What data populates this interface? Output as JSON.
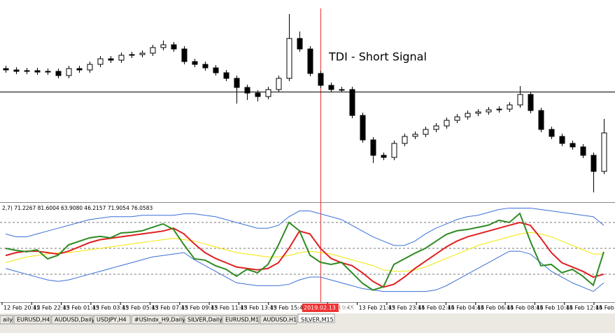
{
  "chart_data": [
    {
      "type": "candlestick",
      "annotation": "TDI - Short Signal",
      "ylim": [
        10,
        290
      ],
      "hline": 164,
      "up_color": "#ffffff",
      "down_color": "#000000",
      "open": [
        197,
        195,
        193,
        194,
        192,
        193,
        187,
        197,
        195,
        203,
        211,
        209,
        216,
        217,
        219,
        227,
        231,
        225,
        207,
        203,
        198,
        191,
        183,
        170,
        162,
        157,
        167,
        183,
        240,
        225,
        190,
        173,
        167,
        167,
        130,
        95,
        73,
        70,
        90,
        100,
        103,
        110,
        115,
        123,
        128,
        133,
        135,
        138,
        139,
        145,
        160,
        137,
        110,
        100,
        90,
        85,
        73,
        50
      ],
      "high": [
        201,
        199,
        198,
        198,
        197,
        197,
        201,
        201,
        207,
        215,
        215,
        220,
        221,
        223,
        231,
        237,
        235,
        229,
        211,
        207,
        202,
        195,
        187,
        174,
        166,
        171,
        187,
        275,
        250,
        229,
        194,
        177,
        171,
        171,
        134,
        99,
        77,
        94,
        104,
        107,
        114,
        119,
        127,
        132,
        137,
        139,
        142,
        143,
        149,
        172,
        164,
        141,
        114,
        104,
        94,
        89,
        77,
        125
      ],
      "low": [
        191,
        189,
        189,
        188,
        188,
        183,
        183,
        191,
        191,
        199,
        205,
        205,
        212,
        213,
        215,
        223,
        221,
        203,
        199,
        194,
        187,
        179,
        147,
        152,
        150,
        153,
        163,
        179,
        221,
        186,
        169,
        163,
        163,
        126,
        91,
        62,
        66,
        66,
        86,
        96,
        99,
        106,
        111,
        119,
        124,
        129,
        131,
        134,
        135,
        141,
        133,
        106,
        96,
        86,
        81,
        69,
        20,
        46
      ],
      "close": [
        195,
        193,
        194,
        192,
        193,
        187,
        197,
        195,
        203,
        211,
        209,
        216,
        217,
        219,
        227,
        231,
        225,
        207,
        203,
        198,
        191,
        183,
        170,
        162,
        157,
        167,
        183,
        240,
        225,
        190,
        173,
        167,
        167,
        130,
        95,
        73,
        70,
        90,
        100,
        103,
        110,
        115,
        123,
        128,
        133,
        135,
        138,
        139,
        145,
        160,
        137,
        110,
        100,
        90,
        85,
        73,
        50,
        105
      ]
    },
    {
      "type": "line",
      "header": "2,7) 71.2267 81.6004 63.9080 46.2157 71.9054 76.0583",
      "ylim": [
        12.5,
        78.7
      ],
      "levels": [
        68,
        50,
        32
      ],
      "series": [
        {
          "color": "#3a6fd8",
          "values": [
            60,
            58,
            58,
            60,
            62,
            64,
            66,
            68,
            70,
            71,
            72,
            72,
            72,
            73,
            73,
            73,
            73,
            74,
            74,
            73,
            72,
            70,
            68,
            66,
            64,
            64,
            66,
            72,
            76,
            76,
            74,
            72,
            70,
            66,
            62,
            58,
            55,
            52,
            52,
            55,
            60,
            64,
            67,
            70,
            72,
            73,
            75,
            77,
            78,
            78,
            78,
            77,
            76,
            75,
            74,
            73,
            72,
            66
          ]
        },
        {
          "color": "#3a6fd8",
          "values": [
            36,
            34,
            32,
            30,
            28,
            27,
            28,
            30,
            32,
            34,
            36,
            38,
            40,
            42,
            44,
            45,
            46,
            47,
            42,
            38,
            34,
            30,
            26,
            25,
            24,
            24,
            24,
            25,
            28,
            30,
            30,
            28,
            26,
            24,
            22,
            21,
            20,
            20,
            20,
            20,
            20,
            21,
            24,
            28,
            32,
            36,
            40,
            44,
            48,
            48,
            46,
            40,
            34,
            30,
            26,
            23,
            20,
            26
          ]
        },
        {
          "color": "#f2e600",
          "values": [
            40,
            42,
            44,
            45,
            46,
            47,
            47,
            48,
            49,
            50,
            51,
            52,
            53,
            54,
            55,
            56,
            57,
            56,
            55,
            53,
            51,
            49,
            47,
            46,
            45,
            44,
            44,
            45,
            47,
            48,
            47,
            46,
            44,
            42,
            40,
            38,
            35,
            34,
            34,
            35,
            37,
            40,
            43,
            46,
            49,
            52,
            54,
            56,
            58,
            60,
            61,
            60,
            58,
            55,
            52,
            49,
            46,
            46
          ]
        },
        {
          "color": "#e02020",
          "values": [
            45,
            47,
            48,
            48,
            47,
            46,
            48,
            51,
            54,
            56,
            57,
            58,
            59,
            60,
            61,
            62,
            64,
            60,
            53,
            47,
            43,
            40,
            37,
            36,
            35,
            36,
            40,
            50,
            62,
            60,
            50,
            43,
            40,
            38,
            33,
            27,
            23,
            25,
            30,
            36,
            41,
            46,
            51,
            55,
            58,
            60,
            62,
            64,
            66,
            68,
            66,
            57,
            47,
            40,
            37,
            34,
            30,
            32
          ]
        },
        {
          "color": "#2e8b22",
          "values": [
            50.0,
            48.6,
            47.6,
            49.0,
            42.7,
            45.2,
            52.4,
            54.9,
            57.3,
            58.3,
            57.3,
            60.7,
            61.2,
            62.2,
            64.6,
            67.0,
            63.1,
            52.4,
            42.7,
            41.8,
            37.9,
            35.4,
            30.6,
            35.4,
            33.0,
            38.8,
            52.4,
            68.0,
            62.2,
            45.2,
            40.3,
            38.8,
            40.3,
            33.0,
            25.7,
            20.9,
            23.3,
            38.8,
            42.7,
            46.6,
            50.0,
            54.9,
            59.7,
            62.2,
            63.1,
            64.6,
            66.1,
            69.5,
            68.0,
            74.3,
            54.9,
            37.9,
            38.8,
            33.0,
            35.4,
            30.6,
            24.3,
            47.6
          ]
        }
      ]
    }
  ],
  "time_axis": [
    "12 Feb 20:45",
    "12 Feb 22:45",
    "13 Feb 01:45",
    "13 Feb 03:45",
    "13 Feb 05:45",
    "13 Feb 07:45",
    "13 Feb 09:45",
    "13 Feb 11:45",
    "13 Feb 13:45",
    "13 Feb 15:45",
    "eb 19:45",
    "13 Feb 21:45",
    "13 Feb 23:45",
    "14 Feb 02:45",
    "14 Feb 04:45",
    "14 Feb 06:45",
    "14 Feb 08:45",
    "14 Feb 10:45",
    "14 Feb 12:45",
    "14 Feb 14:45"
  ],
  "cursor_time": "2019.02.13 19:00",
  "tabs": [
    "aily",
    "EURUSD,H4",
    "AUDUSD,Daily",
    "USDJPY,H4",
    "#USIndx_H9,Daily",
    "SILVER,Daily",
    "EURUSD,M1",
    "AUDUSD,H1",
    "SILVER,M15"
  ]
}
